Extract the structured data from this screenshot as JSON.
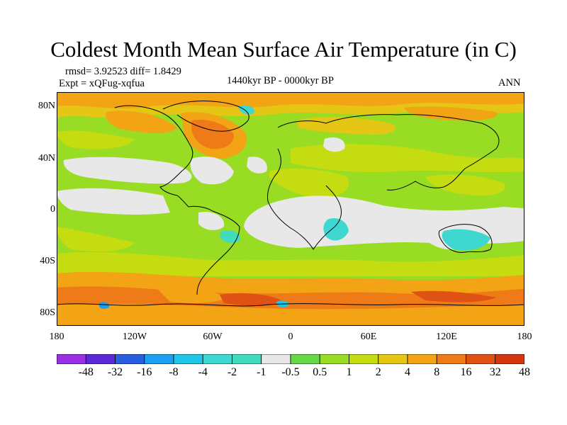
{
  "title": "Coldest Month Mean Surface Air Temperature (in C)",
  "stats": "rmsd= 3.92523 diff= 1.8429",
  "experiment": "Expt = xQFug-xqfua",
  "period": "1440kyr BP - 0000kyr BP",
  "season": "ANN",
  "lat_labels": [
    "80N",
    "40N",
    "0",
    "40S",
    "80S"
  ],
  "lon_labels": [
    "180",
    "120W",
    "60W",
    "0",
    "60E",
    "120E",
    "180"
  ],
  "colorbar": {
    "labels": [
      "-48",
      "-32",
      "-16",
      "-8",
      "-4",
      "-2",
      "-1",
      "-0.5",
      "0.5",
      "1",
      "2",
      "4",
      "8",
      "16",
      "32",
      "48"
    ],
    "colors": [
      "#9a2fe6",
      "#5a2ad8",
      "#2a5ee0",
      "#1aa0ee",
      "#20c6e8",
      "#3ed8d0",
      "#40dcbc",
      "#e8e8e8",
      "#66d848",
      "#98dc24",
      "#c4dc10",
      "#e6c614",
      "#f2a414",
      "#ee7a18",
      "#e05214",
      "#d6360e"
    ]
  }
}
